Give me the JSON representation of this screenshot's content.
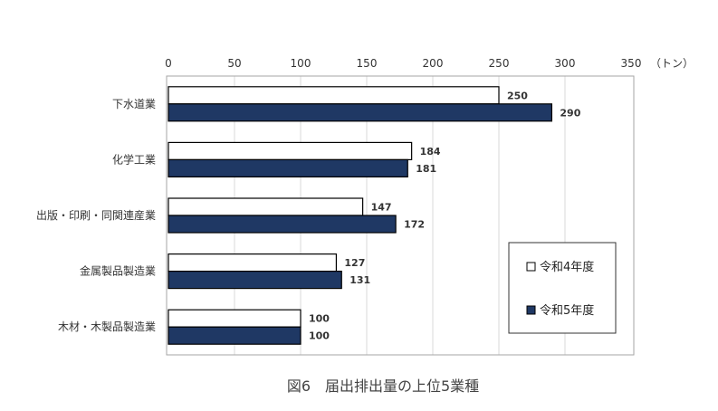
{
  "chart_data": {
    "type": "bar",
    "orientation": "horizontal",
    "title": "図6　届出排出量の上位5業種",
    "unit": "（トン）",
    "categories": [
      "下水道業",
      "化学工業",
      "出版・印刷・同関連産業",
      "金属製品製造業",
      "木材・木製品製造業"
    ],
    "series": [
      {
        "name": "令和4年度",
        "values": [
          250,
          184,
          147,
          127,
          100
        ],
        "color": "#ffffff"
      },
      {
        "name": "令和5年度",
        "values": [
          290,
          181,
          172,
          131,
          100
        ],
        "color": "#1f3864"
      }
    ],
    "xlim": [
      0,
      350
    ],
    "xticks": [
      0,
      50,
      100,
      150,
      200,
      250,
      300,
      350
    ],
    "x_axis_position": "top",
    "grid": true,
    "legend_position": "bottom-right"
  }
}
